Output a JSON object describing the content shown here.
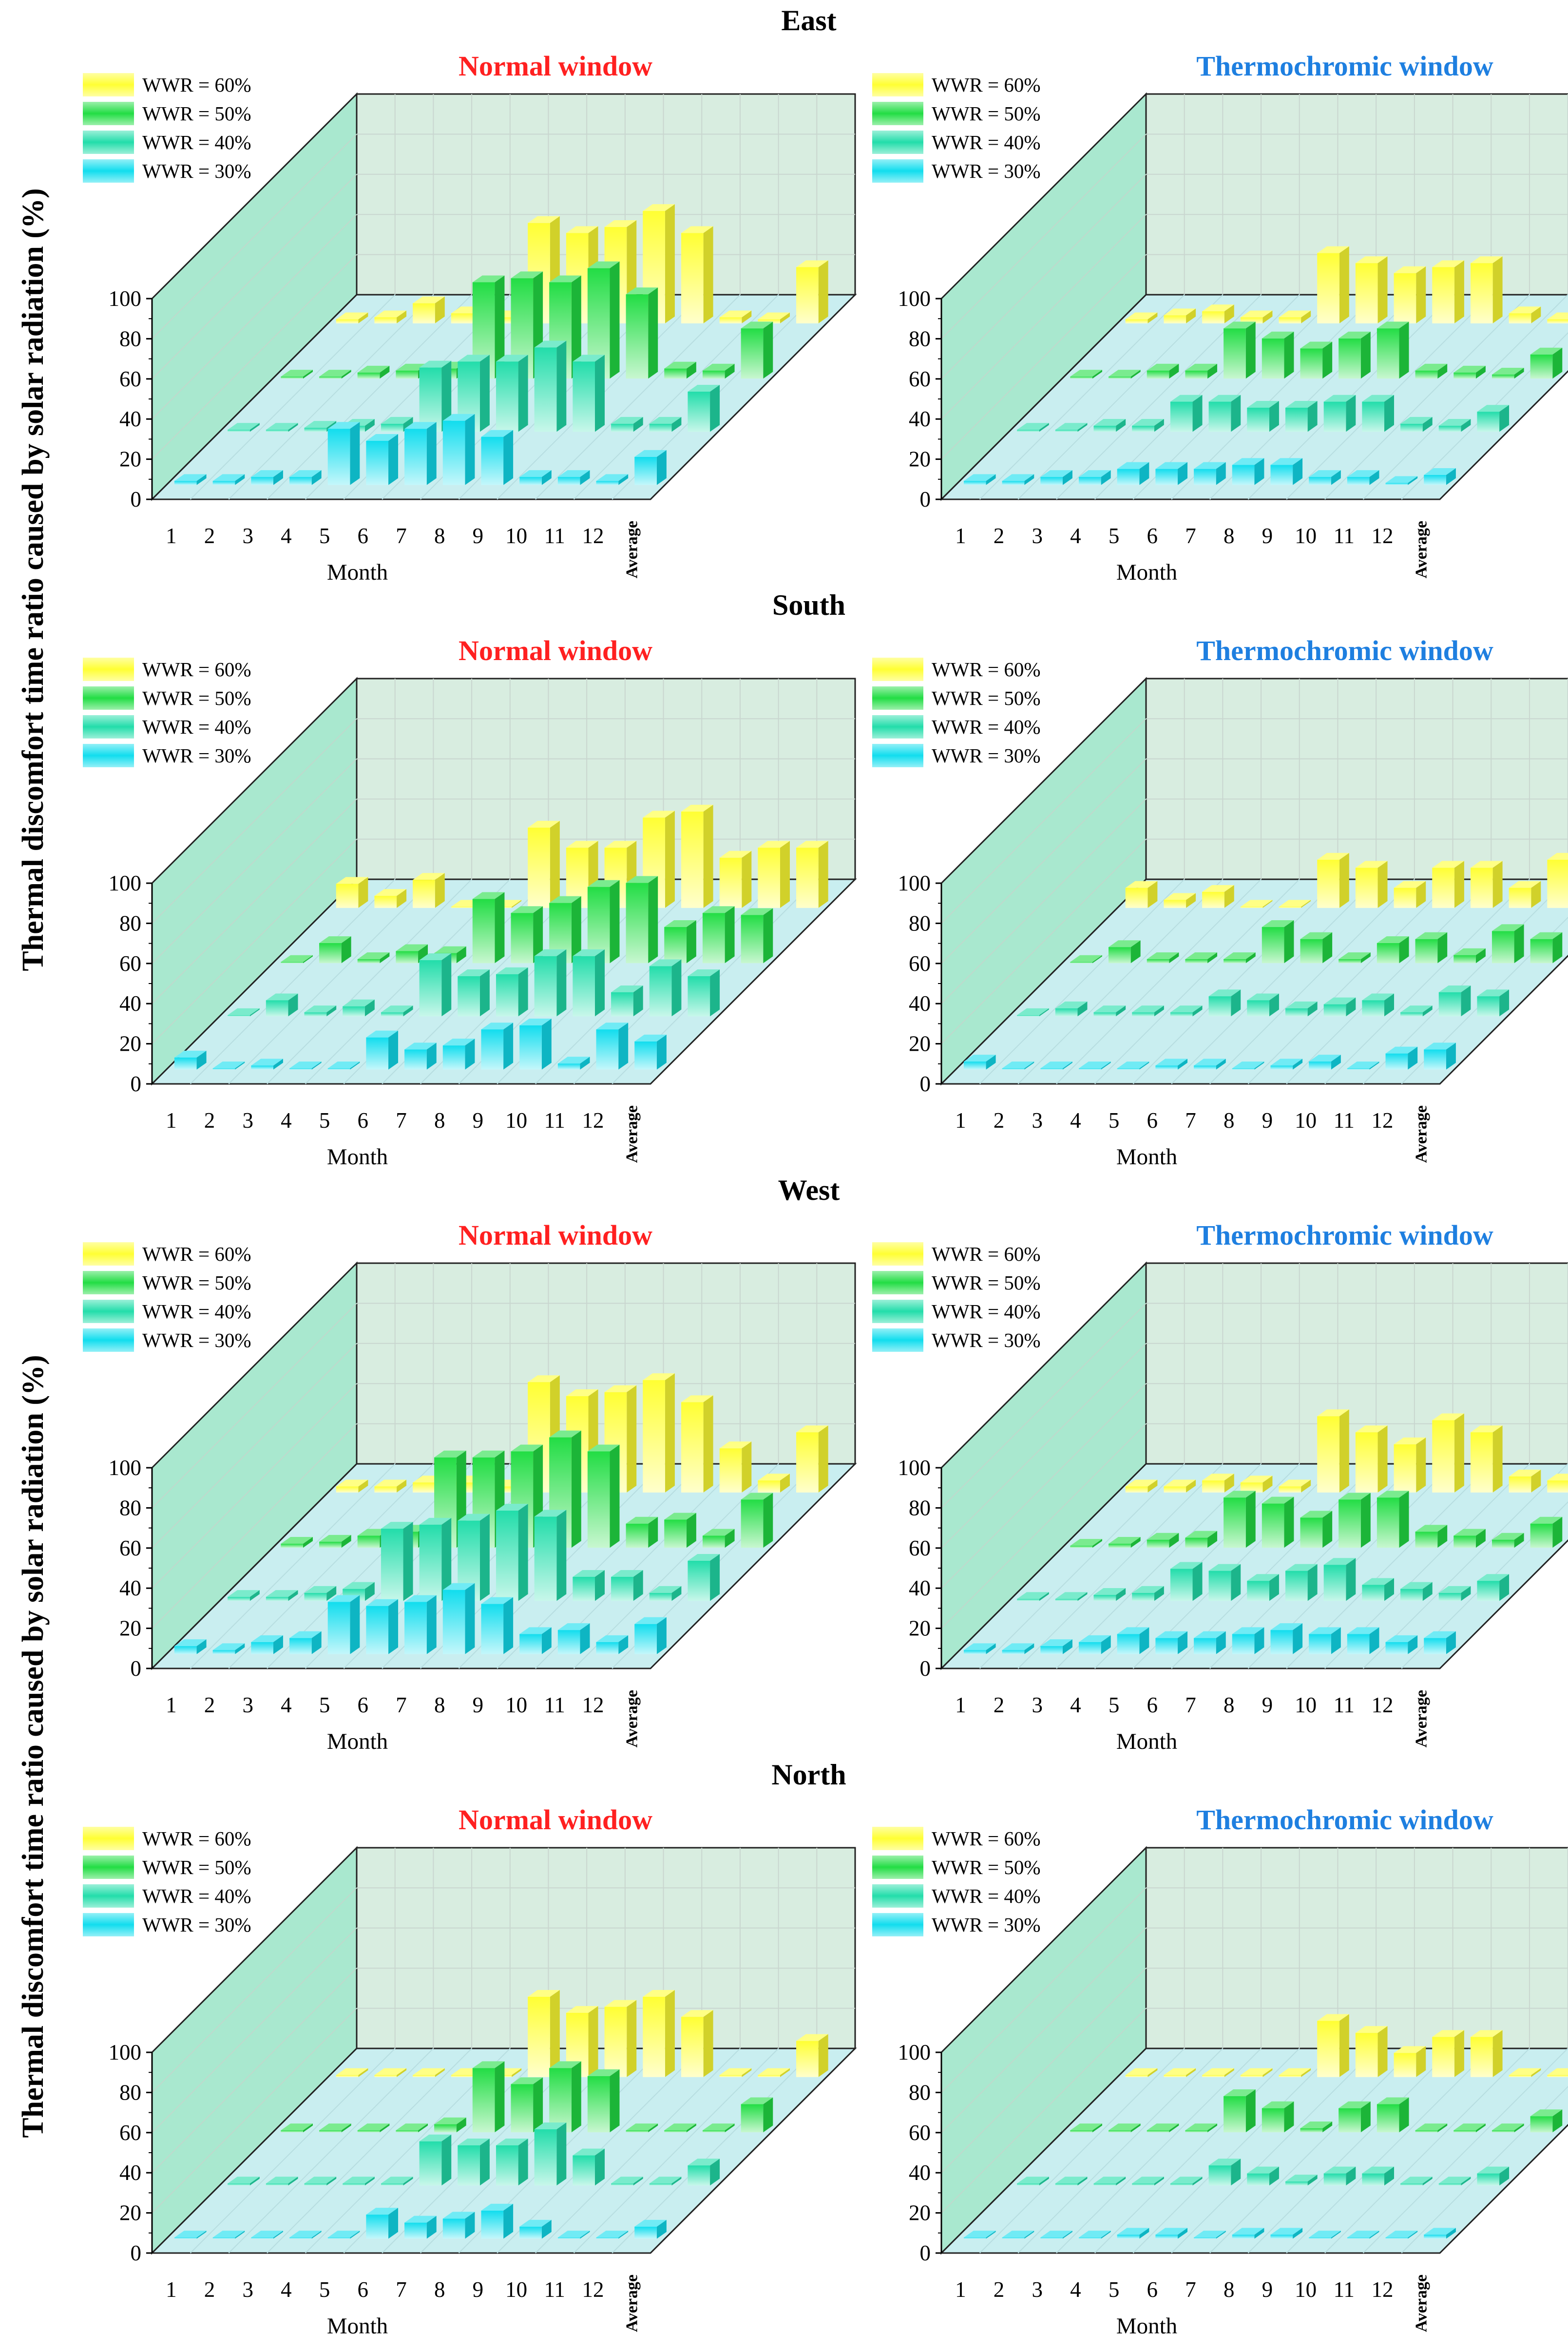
{
  "figure": {
    "y_axis_label": "Thermal discomfort time ratio caused by solar radiation (%)",
    "x_axis_label": "Month",
    "x_categories": [
      "1",
      "2",
      "3",
      "4",
      "5",
      "6",
      "7",
      "8",
      "9",
      "10",
      "11",
      "12",
      "Average"
    ],
    "y_ticks": [
      "0",
      "20",
      "40",
      "60",
      "80",
      "100"
    ],
    "panel_titles": {
      "normal": "Normal window",
      "thermo": "Thermochromic window"
    },
    "sections": [
      "East",
      "South",
      "West",
      "North"
    ]
  },
  "legend": [
    "WWR = 60%",
    "WWR = 50%",
    "WWR = 40%",
    "WWR = 30%"
  ],
  "colors": {
    "wwr60": "#ffff33",
    "wwr50": "#22dd44",
    "wwr40": "#22ddaa",
    "wwr30": "#11ddee",
    "normal_title": "#ff2020",
    "thermo_title": "#1e7fe0",
    "back_wall": "#d8ede0",
    "side_wall": "#a9e8cf",
    "floor": "#c9eef0"
  },
  "chart_data": [
    {
      "type": "bar3d",
      "orientation": "East",
      "window": "Normal window",
      "ylim": [
        0,
        100
      ],
      "xlabel": "Month",
      "ylabel": "Thermal discomfort time ratio caused by solar radiation (%)",
      "categories": [
        "1",
        "2",
        "3",
        "4",
        "5",
        "6",
        "7",
        "8",
        "9",
        "10",
        "11",
        "12",
        "Average"
      ],
      "series": [
        {
          "name": "WWR = 30%",
          "values": [
            2,
            2,
            4,
            4,
            28,
            22,
            28,
            32,
            24,
            4,
            4,
            2,
            14
          ]
        },
        {
          "name": "WWR = 40%",
          "values": [
            1,
            1,
            2,
            3,
            4,
            32,
            35,
            35,
            42,
            35,
            4,
            4,
            20
          ]
        },
        {
          "name": "WWR = 50%",
          "values": [
            1,
            1,
            3,
            4,
            5,
            48,
            50,
            48,
            55,
            42,
            5,
            4,
            25
          ]
        },
        {
          "name": "WWR = 60%",
          "values": [
            2,
            3,
            10,
            5,
            3,
            50,
            45,
            48,
            56,
            45,
            3,
            2,
            28
          ]
        }
      ]
    },
    {
      "type": "bar3d",
      "orientation": "East",
      "window": "Thermochromic window",
      "ylim": [
        0,
        100
      ],
      "xlabel": "Month",
      "ylabel": "Thermal discomfort time ratio caused by solar radiation (%)",
      "categories": [
        "1",
        "2",
        "3",
        "4",
        "5",
        "6",
        "7",
        "8",
        "9",
        "10",
        "11",
        "12",
        "Average"
      ],
      "series": [
        {
          "name": "WWR = 30%",
          "values": [
            2,
            2,
            4,
            4,
            8,
            8,
            8,
            10,
            10,
            4,
            4,
            1,
            5
          ]
        },
        {
          "name": "WWR = 40%",
          "values": [
            1,
            1,
            3,
            3,
            15,
            15,
            12,
            12,
            15,
            15,
            4,
            3,
            10
          ]
        },
        {
          "name": "WWR = 50%",
          "values": [
            1,
            1,
            4,
            4,
            25,
            20,
            15,
            20,
            25,
            4,
            3,
            2,
            12
          ]
        },
        {
          "name": "WWR = 60%",
          "values": [
            2,
            4,
            6,
            3,
            3,
            35,
            30,
            25,
            28,
            30,
            5,
            2,
            18
          ]
        }
      ]
    },
    {
      "type": "bar3d",
      "orientation": "South",
      "window": "Normal window",
      "ylim": [
        0,
        100
      ],
      "xlabel": "Month",
      "ylabel": "Thermal discomfort time ratio caused by solar radiation (%)",
      "categories": [
        "1",
        "2",
        "3",
        "4",
        "5",
        "6",
        "7",
        "8",
        "9",
        "10",
        "11",
        "12",
        "Average"
      ],
      "series": [
        {
          "name": "WWR = 30%",
          "values": [
            6,
            0,
            2,
            0,
            0,
            16,
            10,
            12,
            20,
            22,
            3,
            20,
            14
          ]
        },
        {
          "name": "WWR = 40%",
          "values": [
            0,
            8,
            2,
            5,
            2,
            28,
            20,
            21,
            30,
            30,
            12,
            25,
            20
          ]
        },
        {
          "name": "WWR = 50%",
          "values": [
            0,
            10,
            2,
            6,
            5,
            32,
            25,
            30,
            38,
            40,
            18,
            25,
            24
          ]
        },
        {
          "name": "WWR = 60%",
          "values": [
            12,
            6,
            14,
            0,
            0,
            40,
            30,
            30,
            45,
            48,
            25,
            30,
            30
          ]
        }
      ]
    },
    {
      "type": "bar3d",
      "orientation": "South",
      "window": "Thermochromic window",
      "ylim": [
        0,
        100
      ],
      "xlabel": "Month",
      "ylabel": "Thermal discomfort time ratio caused by solar radiation (%)",
      "categories": [
        "1",
        "2",
        "3",
        "4",
        "5",
        "6",
        "7",
        "8",
        "9",
        "10",
        "11",
        "12",
        "Average"
      ],
      "series": [
        {
          "name": "WWR = 30%",
          "values": [
            4,
            0,
            0,
            0,
            0,
            2,
            2,
            0,
            2,
            4,
            0,
            8,
            10
          ]
        },
        {
          "name": "WWR = 40%",
          "values": [
            0,
            4,
            2,
            2,
            2,
            10,
            8,
            4,
            6,
            8,
            2,
            12,
            10
          ]
        },
        {
          "name": "WWR = 50%",
          "values": [
            0,
            8,
            2,
            2,
            2,
            18,
            12,
            2,
            10,
            12,
            4,
            16,
            12
          ]
        },
        {
          "name": "WWR = 60%",
          "values": [
            10,
            4,
            8,
            0,
            0,
            24,
            20,
            10,
            20,
            20,
            10,
            24,
            20
          ]
        }
      ]
    },
    {
      "type": "bar3d",
      "orientation": "West",
      "window": "Normal window",
      "ylim": [
        0,
        100
      ],
      "xlabel": "Month",
      "ylabel": "Thermal discomfort time ratio caused by solar radiation (%)",
      "categories": [
        "1",
        "2",
        "3",
        "4",
        "5",
        "6",
        "7",
        "8",
        "9",
        "10",
        "11",
        "12",
        "Average"
      ],
      "series": [
        {
          "name": "WWR = 30%",
          "values": [
            4,
            2,
            6,
            8,
            26,
            24,
            26,
            32,
            25,
            10,
            12,
            6,
            15
          ]
        },
        {
          "name": "WWR = 40%",
          "values": [
            2,
            2,
            4,
            6,
            36,
            38,
            40,
            45,
            42,
            12,
            12,
            4,
            20
          ]
        },
        {
          "name": "WWR = 50%",
          "values": [
            2,
            3,
            6,
            8,
            45,
            45,
            48,
            55,
            48,
            12,
            14,
            6,
            24
          ]
        },
        {
          "name": "WWR = 60%",
          "values": [
            3,
            3,
            5,
            5,
            3,
            55,
            48,
            50,
            56,
            45,
            22,
            6,
            30
          ]
        }
      ]
    },
    {
      "type": "bar3d",
      "orientation": "West",
      "window": "Thermochromic window",
      "ylim": [
        0,
        100
      ],
      "xlabel": "Month",
      "ylabel": "Thermal discomfort time ratio caused by solar radiation (%)",
      "categories": [
        "1",
        "2",
        "3",
        "4",
        "5",
        "6",
        "7",
        "8",
        "9",
        "10",
        "11",
        "12",
        "Average"
      ],
      "series": [
        {
          "name": "WWR = 30%",
          "values": [
            2,
            2,
            4,
            6,
            10,
            8,
            8,
            10,
            12,
            10,
            10,
            6,
            8
          ]
        },
        {
          "name": "WWR = 40%",
          "values": [
            1,
            1,
            3,
            4,
            16,
            15,
            10,
            15,
            18,
            8,
            6,
            4,
            10
          ]
        },
        {
          "name": "WWR = 50%",
          "values": [
            1,
            2,
            4,
            5,
            25,
            22,
            15,
            24,
            25,
            8,
            6,
            4,
            12
          ]
        },
        {
          "name": "WWR = 60%",
          "values": [
            3,
            3,
            6,
            5,
            3,
            38,
            30,
            24,
            36,
            30,
            8,
            6,
            18
          ]
        }
      ]
    },
    {
      "type": "bar3d",
      "orientation": "North",
      "window": "Normal window",
      "ylim": [
        0,
        100
      ],
      "xlabel": "Month",
      "ylabel": "Thermal discomfort time ratio caused by solar radiation (%)",
      "categories": [
        "1",
        "2",
        "3",
        "4",
        "5",
        "6",
        "7",
        "8",
        "9",
        "10",
        "11",
        "12",
        "Average"
      ],
      "series": [
        {
          "name": "WWR = 30%",
          "values": [
            0,
            0,
            0,
            0,
            0,
            12,
            8,
            10,
            14,
            6,
            0,
            0,
            6
          ]
        },
        {
          "name": "WWR = 40%",
          "values": [
            1,
            1,
            1,
            1,
            1,
            22,
            20,
            20,
            28,
            15,
            1,
            1,
            10
          ]
        },
        {
          "name": "WWR = 50%",
          "values": [
            1,
            1,
            1,
            1,
            4,
            32,
            24,
            32,
            28,
            1,
            1,
            1,
            14
          ]
        },
        {
          "name": "WWR = 60%",
          "values": [
            1,
            1,
            1,
            1,
            1,
            40,
            32,
            35,
            40,
            30,
            1,
            1,
            18
          ]
        }
      ]
    },
    {
      "type": "bar3d",
      "orientation": "North",
      "window": "Thermochromic window",
      "ylim": [
        0,
        100
      ],
      "xlabel": "Month",
      "ylabel": "Thermal discomfort time ratio caused by solar radiation (%)",
      "categories": [
        "1",
        "2",
        "3",
        "4",
        "5",
        "6",
        "7",
        "8",
        "9",
        "10",
        "11",
        "12",
        "Average"
      ],
      "series": [
        {
          "name": "WWR = 30%",
          "values": [
            0,
            0,
            0,
            0,
            2,
            2,
            0,
            2,
            2,
            0,
            0,
            0,
            2
          ]
        },
        {
          "name": "WWR = 40%",
          "values": [
            1,
            1,
            1,
            1,
            1,
            10,
            6,
            2,
            6,
            6,
            1,
            1,
            6
          ]
        },
        {
          "name": "WWR = 50%",
          "values": [
            1,
            1,
            1,
            1,
            18,
            12,
            2,
            12,
            14,
            1,
            1,
            1,
            8
          ]
        },
        {
          "name": "WWR = 60%",
          "values": [
            1,
            1,
            1,
            1,
            1,
            28,
            22,
            12,
            20,
            20,
            1,
            1,
            12
          ]
        }
      ]
    }
  ]
}
